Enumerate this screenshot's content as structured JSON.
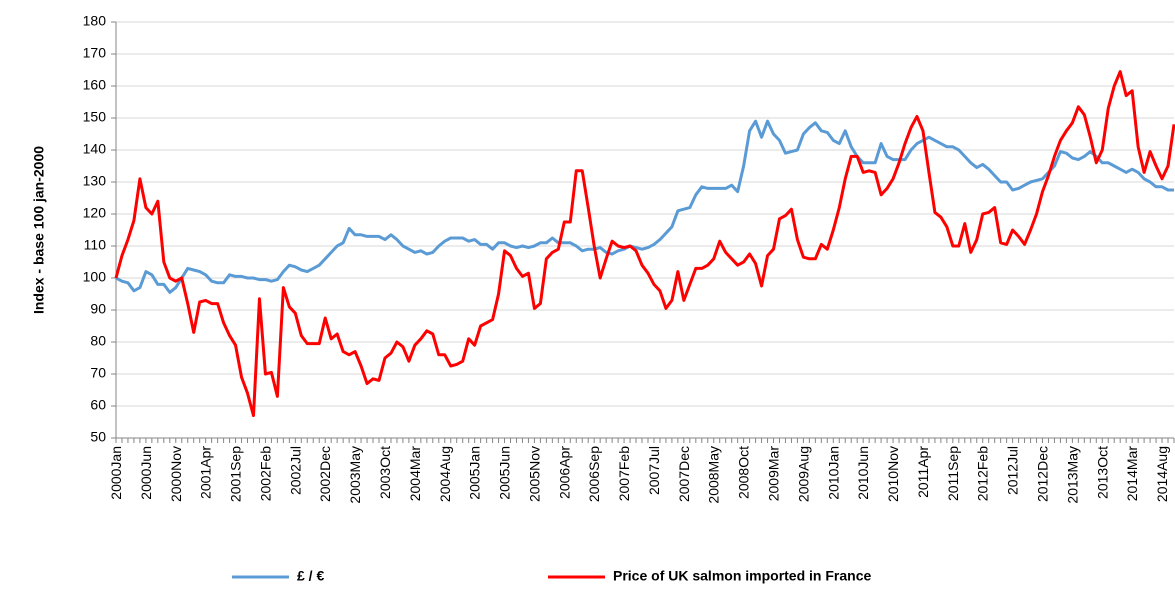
{
  "chart_data": {
    "type": "line",
    "y_label": "Index - base 100 jan-2000",
    "categories": [
      "2000Jan",
      null,
      null,
      null,
      null,
      "2000Jun",
      null,
      null,
      null,
      null,
      "2000Nov",
      null,
      null,
      null,
      null,
      "2001Apr",
      null,
      null,
      null,
      null,
      "2001Sep",
      null,
      null,
      null,
      null,
      "2002Feb",
      null,
      null,
      null,
      null,
      "2002Jul",
      null,
      null,
      null,
      null,
      "2002Dec",
      null,
      null,
      null,
      null,
      "2003May",
      null,
      null,
      null,
      null,
      "2003Oct",
      null,
      null,
      null,
      null,
      "2004Mar",
      null,
      null,
      null,
      null,
      "2004Aug",
      null,
      null,
      null,
      null,
      "2005Jan",
      null,
      null,
      null,
      null,
      "2005Jun",
      null,
      null,
      null,
      null,
      "2005Nov",
      null,
      null,
      null,
      null,
      "2006Apr",
      null,
      null,
      null,
      null,
      "2006Sep",
      null,
      null,
      null,
      null,
      "2007Feb",
      null,
      null,
      null,
      null,
      "2007Jul",
      null,
      null,
      null,
      null,
      "2007Dec",
      null,
      null,
      null,
      null,
      "2008May",
      null,
      null,
      null,
      null,
      "2008Oct",
      null,
      null,
      null,
      null,
      "2009Mar",
      null,
      null,
      null,
      null,
      "2009Aug",
      null,
      null,
      null,
      null,
      "2010Jan",
      null,
      null,
      null,
      null,
      "2010Jun",
      null,
      null,
      null,
      null,
      "2010Nov",
      null,
      null,
      null,
      null,
      "2011Apr",
      null,
      null,
      null,
      null,
      "2011Sep",
      null,
      null,
      null,
      null,
      "2012Feb",
      null,
      null,
      null,
      null,
      "2012Jul",
      null,
      null,
      null,
      null,
      "2012Dec",
      null,
      null,
      null,
      null,
      "2013May",
      null,
      null,
      null,
      null,
      "2013Oct",
      null,
      null,
      null,
      null,
      "2014Mar",
      null,
      null,
      null,
      null,
      "2014Aug",
      null,
      null
    ],
    "series": [
      {
        "name": "£ / €",
        "color": "#5b9bd5",
        "values": [
          100,
          99,
          98.5,
          96,
          97,
          102,
          101,
          98,
          98,
          95.5,
          97,
          100,
          103,
          102.5,
          102,
          101,
          99,
          98.5,
          98.5,
          101,
          100.5,
          100.5,
          100,
          100,
          99.5,
          99.5,
          99,
          99.5,
          102,
          104,
          103.5,
          102.5,
          102,
          103,
          104,
          106,
          108,
          110,
          111,
          115.5,
          113.5,
          113.5,
          113,
          113,
          113,
          112,
          113.5,
          112,
          110,
          109,
          108,
          108.5,
          107.5,
          108,
          110,
          111.5,
          112.5,
          112.5,
          112.5,
          111.5,
          112,
          110.5,
          110.5,
          109,
          111,
          111,
          110,
          109.5,
          110,
          109.5,
          110,
          111,
          111,
          112.5,
          111,
          111,
          111,
          110,
          108.5,
          109,
          109,
          109.5,
          108,
          107.5,
          108.5,
          109,
          110,
          109.5,
          109,
          109.5,
          110.5,
          112,
          114,
          116,
          121,
          121.5,
          122,
          126,
          128.5,
          128,
          128,
          128,
          128,
          129,
          127,
          135,
          146,
          149,
          144,
          149,
          145,
          143,
          139,
          139.5,
          140,
          145,
          147,
          148.5,
          146,
          145.5,
          143,
          142,
          146,
          141,
          138,
          136,
          136,
          136,
          142,
          138,
          137,
          137,
          137,
          140,
          142,
          143,
          144,
          143,
          142,
          141,
          141,
          140,
          138,
          136,
          134.5,
          135.5,
          134,
          132,
          130,
          130,
          127.5,
          128,
          129,
          130,
          130.5,
          131,
          133,
          135,
          139.5,
          139,
          137.5,
          137,
          138,
          139.5,
          138,
          136,
          136,
          135,
          134,
          133,
          134,
          133,
          131,
          130,
          128.5,
          128.5,
          127.5,
          127.5
        ]
      },
      {
        "name": "Price of UK salmon imported in France",
        "color": "#ff0000",
        "values": [
          100,
          107,
          112,
          118,
          131,
          122,
          120,
          124,
          105,
          100,
          99,
          100,
          92,
          83,
          92.5,
          93,
          92,
          92,
          86,
          82,
          79,
          69,
          64,
          57,
          93.5,
          70,
          70.5,
          63,
          97,
          91,
          89,
          82,
          79.5,
          79.5,
          79.5,
          87.5,
          81,
          82.5,
          77,
          76,
          77,
          72.5,
          67,
          68.5,
          68,
          75,
          76.5,
          80,
          78.5,
          74,
          79,
          81,
          83.5,
          82.5,
          76,
          76,
          72.5,
          73,
          74,
          81,
          79,
          85,
          86,
          87,
          95,
          108.5,
          107,
          103,
          100.5,
          101.5,
          90.5,
          92,
          106,
          108,
          109,
          117.5,
          117.5,
          133.5,
          133.5,
          122,
          110,
          100,
          106,
          111.5,
          110,
          109.5,
          110,
          108.5,
          104,
          101.5,
          98,
          96,
          90.5,
          93,
          102,
          93,
          98,
          103,
          103,
          104,
          106,
          111.5,
          108,
          106,
          104,
          105,
          107.5,
          104.5,
          97.5,
          107,
          109,
          118.5,
          119.5,
          121.5,
          112,
          106.5,
          106,
          106,
          110.5,
          109,
          115,
          122,
          131,
          138,
          138,
          133,
          133.5,
          133,
          126,
          128,
          131,
          136,
          142,
          147,
          150.5,
          146,
          133,
          120.5,
          119,
          116,
          110,
          110,
          117,
          108,
          112,
          120,
          120.5,
          122,
          111,
          110.5,
          115,
          113,
          110.5,
          115,
          120,
          127,
          132,
          138,
          143,
          146,
          148.5,
          153.5,
          151,
          144,
          136,
          140,
          153,
          160,
          164.5,
          157,
          158.5,
          141,
          133,
          139.5,
          135,
          131,
          135,
          148
        ]
      }
    ],
    "ylim": [
      50,
      180
    ],
    "yticks": [
      50,
      60,
      70,
      80,
      90,
      100,
      110,
      120,
      130,
      140,
      150,
      160,
      170,
      180
    ],
    "grid": true,
    "legend": "bottom"
  }
}
